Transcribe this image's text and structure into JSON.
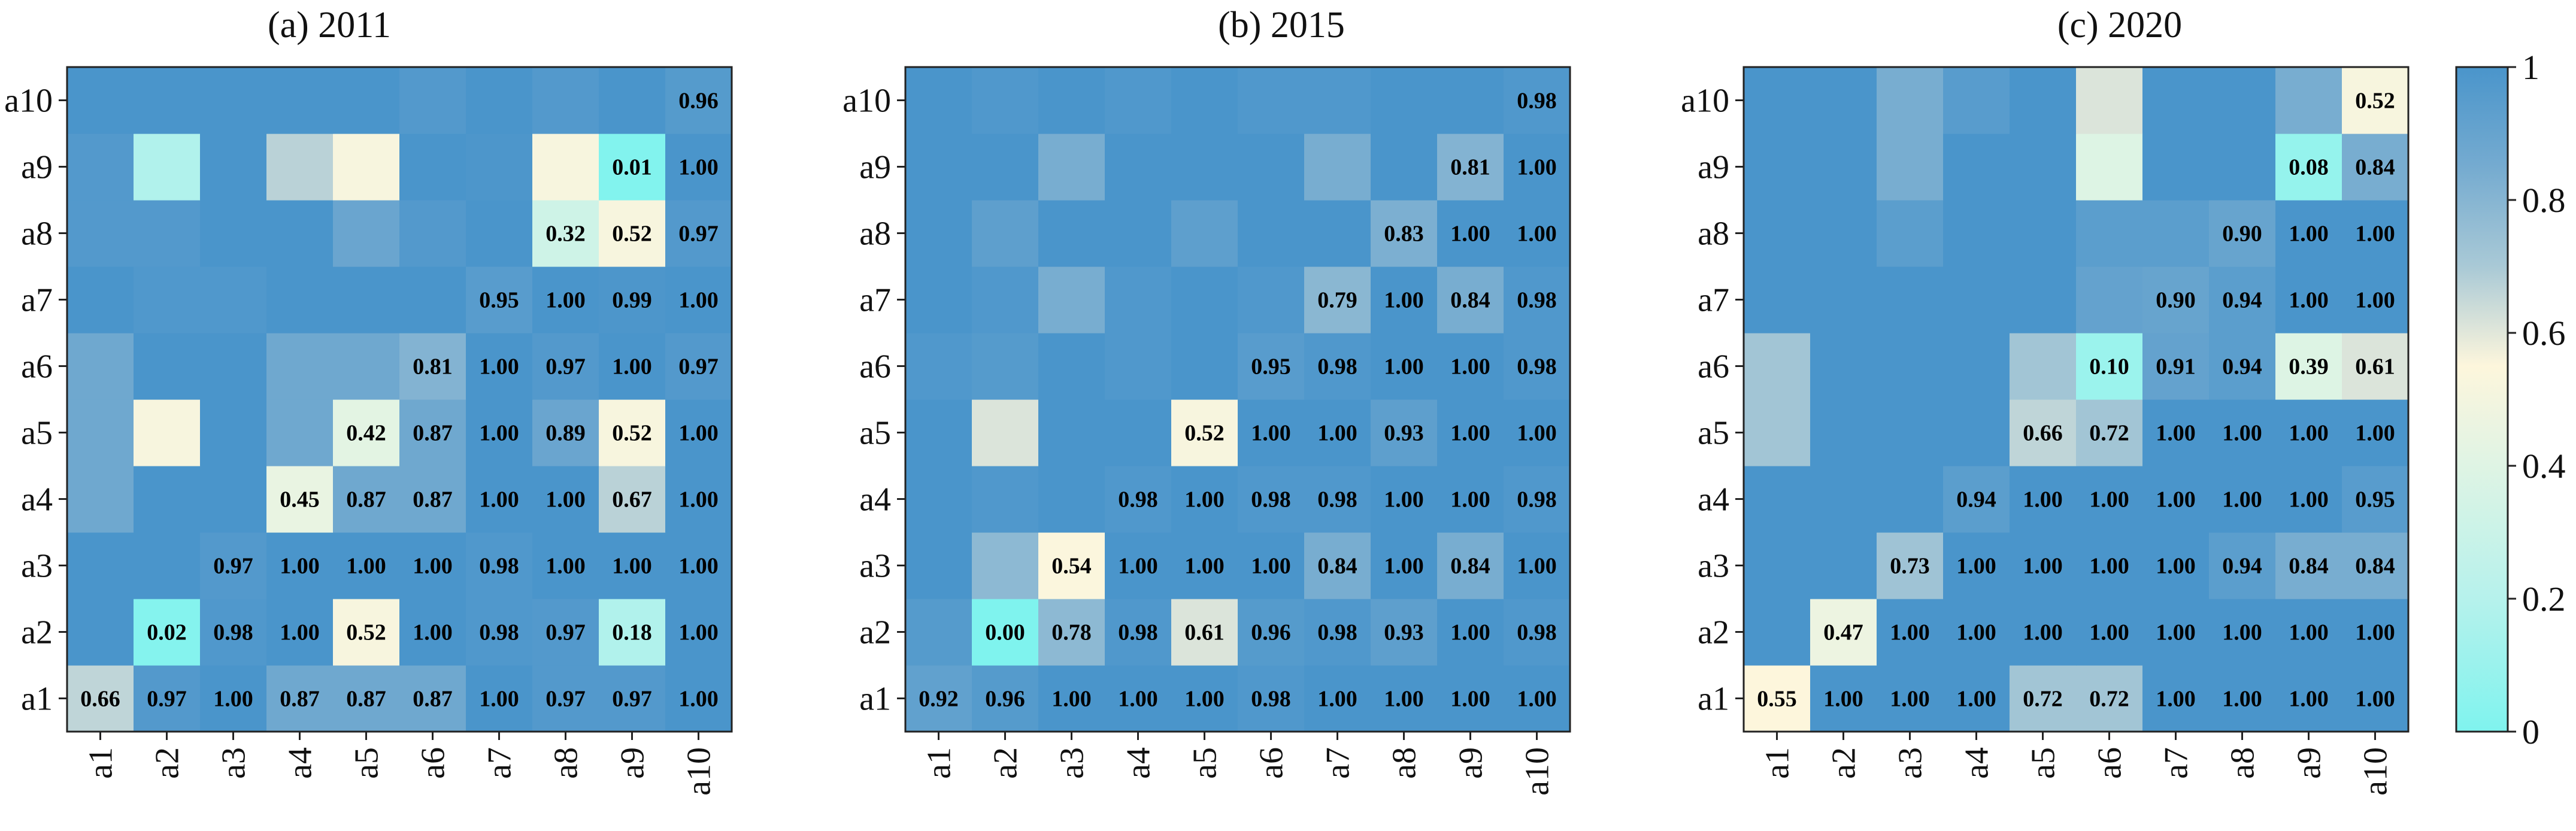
{
  "chart_data": [
    {
      "type": "heatmap",
      "title": "(a) 2011",
      "x_categories": [
        "a1",
        "a2",
        "a3",
        "a4",
        "a5",
        "a6",
        "a7",
        "a8",
        "a9",
        "a10"
      ],
      "y_categories": [
        "a1",
        "a2",
        "a3",
        "a4",
        "a5",
        "a6",
        "a7",
        "a8",
        "a9",
        "a10"
      ],
      "value_range": [
        0,
        1
      ],
      "matrix": [
        [
          0.66,
          0.97,
          1.0,
          0.87,
          0.87,
          0.87,
          1.0,
          0.97,
          0.97,
          1.0
        ],
        [
          1.0,
          0.02,
          0.98,
          1.0,
          0.52,
          1.0,
          0.98,
          0.97,
          0.18,
          1.0
        ],
        [
          1.0,
          1.0,
          0.97,
          1.0,
          1.0,
          1.0,
          0.98,
          1.0,
          1.0,
          1.0
        ],
        [
          0.87,
          1.0,
          1.0,
          0.45,
          0.87,
          0.87,
          1.0,
          1.0,
          0.67,
          1.0
        ],
        [
          0.87,
          0.52,
          1.0,
          0.87,
          0.42,
          0.87,
          1.0,
          0.89,
          0.52,
          1.0
        ],
        [
          0.87,
          1.0,
          1.0,
          0.87,
          0.87,
          0.81,
          1.0,
          0.97,
          1.0,
          0.97
        ],
        [
          1.0,
          0.98,
          0.98,
          1.0,
          1.0,
          1.0,
          0.95,
          1.0,
          0.99,
          1.0
        ],
        [
          0.97,
          0.97,
          1.0,
          1.0,
          0.89,
          0.97,
          1.0,
          0.32,
          0.52,
          0.97
        ],
        [
          0.97,
          0.18,
          1.0,
          0.67,
          0.52,
          1.0,
          0.99,
          0.52,
          0.01,
          1.0
        ],
        [
          1.0,
          1.0,
          1.0,
          1.0,
          1.0,
          0.97,
          1.0,
          0.97,
          1.0,
          0.96
        ]
      ],
      "labels": [
        [
          "0.66",
          "0.97",
          "1.00",
          "0.87",
          "0.87",
          "0.87",
          "1.00",
          "0.97",
          "0.97",
          "1.00"
        ],
        [
          "",
          "0.02",
          "0.98",
          "1.00",
          "0.52",
          "1.00",
          "0.98",
          "0.97",
          "0.18",
          "1.00"
        ],
        [
          "",
          "",
          "0.97",
          "1.00",
          "1.00",
          "1.00",
          "0.98",
          "1.00",
          "1.00",
          "1.00"
        ],
        [
          "",
          "",
          "",
          "0.45",
          "0.87",
          "0.87",
          "1.00",
          "1.00",
          "0.67",
          "1.00"
        ],
        [
          "",
          "",
          "",
          "",
          "0.42",
          "0.87",
          "1.00",
          "0.89",
          "0.52",
          "1.00"
        ],
        [
          "",
          "",
          "",
          "",
          "",
          "0.81",
          "1.00",
          "0.97",
          "1.00",
          "0.97"
        ],
        [
          "",
          "",
          "",
          "",
          "",
          "",
          "0.95",
          "1.00",
          "0.99",
          "1.00"
        ],
        [
          "",
          "",
          "",
          "",
          "",
          "",
          "",
          "0.32",
          "0.52",
          "0.97"
        ],
        [
          "",
          "",
          "",
          "",
          "",
          "",
          "",
          "",
          "0.01",
          "1.00"
        ],
        [
          "",
          "",
          "",
          "",
          "",
          "",
          "",
          "",
          "",
          "0.96"
        ]
      ]
    },
    {
      "type": "heatmap",
      "title": "(b) 2015",
      "x_categories": [
        "a1",
        "a2",
        "a3",
        "a4",
        "a5",
        "a6",
        "a7",
        "a8",
        "a9",
        "a10"
      ],
      "y_categories": [
        "a1",
        "a2",
        "a3",
        "a4",
        "a5",
        "a6",
        "a7",
        "a8",
        "a9",
        "a10"
      ],
      "value_range": [
        0,
        1
      ],
      "matrix": [
        [
          0.92,
          0.96,
          1.0,
          1.0,
          1.0,
          0.98,
          1.0,
          1.0,
          1.0,
          1.0
        ],
        [
          0.96,
          0.0,
          0.78,
          0.98,
          0.61,
          0.96,
          0.98,
          0.93,
          1.0,
          0.98
        ],
        [
          1.0,
          0.78,
          0.54,
          1.0,
          1.0,
          1.0,
          0.84,
          1.0,
          0.84,
          1.0
        ],
        [
          1.0,
          0.98,
          1.0,
          0.98,
          1.0,
          0.98,
          0.98,
          1.0,
          1.0,
          0.98
        ],
        [
          1.0,
          0.61,
          1.0,
          1.0,
          0.52,
          1.0,
          1.0,
          0.93,
          1.0,
          1.0
        ],
        [
          0.98,
          0.96,
          1.0,
          0.98,
          1.0,
          0.95,
          0.98,
          1.0,
          1.0,
          0.98
        ],
        [
          1.0,
          0.98,
          0.84,
          0.98,
          1.0,
          0.98,
          0.79,
          1.0,
          0.84,
          0.98
        ],
        [
          1.0,
          0.93,
          1.0,
          1.0,
          0.93,
          1.0,
          1.0,
          0.83,
          1.0,
          1.0
        ],
        [
          1.0,
          1.0,
          0.84,
          1.0,
          1.0,
          1.0,
          0.84,
          1.0,
          0.81,
          1.0
        ],
        [
          1.0,
          0.98,
          1.0,
          0.98,
          1.0,
          0.98,
          0.98,
          1.0,
          1.0,
          0.98
        ]
      ],
      "labels": [
        [
          "0.92",
          "0.96",
          "1.00",
          "1.00",
          "1.00",
          "0.98",
          "1.00",
          "1.00",
          "1.00",
          "1.00"
        ],
        [
          "",
          "0.00",
          "0.78",
          "0.98",
          "0.61",
          "0.96",
          "0.98",
          "0.93",
          "1.00",
          "0.98"
        ],
        [
          "",
          "",
          "0.54",
          "1.00",
          "1.00",
          "1.00",
          "0.84",
          "1.00",
          "0.84",
          "1.00"
        ],
        [
          "",
          "",
          "",
          "0.98",
          "1.00",
          "0.98",
          "0.98",
          "1.00",
          "1.00",
          "0.98"
        ],
        [
          "",
          "",
          "",
          "",
          "0.52",
          "1.00",
          "1.00",
          "0.93",
          "1.00",
          "1.00"
        ],
        [
          "",
          "",
          "",
          "",
          "",
          "0.95",
          "0.98",
          "1.00",
          "1.00",
          "0.98"
        ],
        [
          "",
          "",
          "",
          "",
          "",
          "",
          "0.79",
          "1.00",
          "0.84",
          "0.98"
        ],
        [
          "",
          "",
          "",
          "",
          "",
          "",
          "",
          "0.83",
          "1.00",
          "1.00"
        ],
        [
          "",
          "",
          "",
          "",
          "",
          "",
          "",
          "",
          "0.81",
          "1.00"
        ],
        [
          "",
          "",
          "",
          "",
          "",
          "",
          "",
          "",
          "",
          "0.98"
        ]
      ]
    },
    {
      "type": "heatmap",
      "title": "(c) 2020",
      "x_categories": [
        "a1",
        "a2",
        "a3",
        "a4",
        "a5",
        "a6",
        "a7",
        "a8",
        "a9",
        "a10"
      ],
      "y_categories": [
        "a1",
        "a2",
        "a3",
        "a4",
        "a5",
        "a6",
        "a7",
        "a8",
        "a9",
        "a10"
      ],
      "value_range": [
        0,
        1
      ],
      "matrix": [
        [
          0.55,
          1.0,
          1.0,
          1.0,
          0.72,
          0.72,
          1.0,
          1.0,
          1.0,
          1.0
        ],
        [
          1.0,
          0.47,
          1.0,
          1.0,
          1.0,
          1.0,
          1.0,
          1.0,
          1.0,
          1.0
        ],
        [
          1.0,
          1.0,
          0.73,
          1.0,
          1.0,
          1.0,
          1.0,
          0.94,
          0.84,
          0.84
        ],
        [
          1.0,
          1.0,
          1.0,
          0.94,
          1.0,
          1.0,
          1.0,
          1.0,
          1.0,
          0.95
        ],
        [
          0.72,
          1.0,
          1.0,
          1.0,
          0.66,
          0.72,
          1.0,
          1.0,
          1.0,
          1.0
        ],
        [
          0.72,
          1.0,
          1.0,
          1.0,
          0.72,
          0.1,
          0.91,
          0.94,
          0.39,
          0.61
        ],
        [
          1.0,
          1.0,
          1.0,
          1.0,
          1.0,
          0.91,
          0.9,
          0.94,
          1.0,
          1.0
        ],
        [
          1.0,
          1.0,
          0.94,
          1.0,
          1.0,
          0.94,
          0.94,
          0.9,
          1.0,
          1.0
        ],
        [
          1.0,
          1.0,
          0.84,
          1.0,
          1.0,
          0.39,
          1.0,
          1.0,
          0.08,
          0.84
        ],
        [
          1.0,
          1.0,
          0.84,
          0.95,
          1.0,
          0.61,
          1.0,
          1.0,
          0.84,
          0.52
        ]
      ],
      "labels": [
        [
          "0.55",
          "1.00",
          "1.00",
          "1.00",
          "0.72",
          "0.72",
          "1.00",
          "1.00",
          "1.00",
          "1.00"
        ],
        [
          "",
          "0.47",
          "1.00",
          "1.00",
          "1.00",
          "1.00",
          "1.00",
          "1.00",
          "1.00",
          "1.00"
        ],
        [
          "",
          "",
          "0.73",
          "1.00",
          "1.00",
          "1.00",
          "1.00",
          "0.94",
          "0.84",
          "0.84"
        ],
        [
          "",
          "",
          "",
          "0.94",
          "1.00",
          "1.00",
          "1.00",
          "1.00",
          "1.00",
          "0.95"
        ],
        [
          "",
          "",
          "",
          "",
          "0.66",
          "0.72",
          "1.00",
          "1.00",
          "1.00",
          "1.00"
        ],
        [
          "",
          "",
          "",
          "",
          "",
          "0.10",
          "0.91",
          "0.94",
          "0.39",
          "0.61"
        ],
        [
          "",
          "",
          "",
          "",
          "",
          "",
          "0.90",
          "0.94",
          "1.00",
          "1.00"
        ],
        [
          "",
          "",
          "",
          "",
          "",
          "",
          "",
          "0.90",
          "1.00",
          "1.00"
        ],
        [
          "",
          "",
          "",
          "",
          "",
          "",
          "",
          "",
          "0.08",
          "0.84"
        ],
        [
          "",
          "",
          "",
          "",
          "",
          "",
          "",
          "",
          "",
          "0.52"
        ]
      ]
    }
  ],
  "colorbar": {
    "ticks": [
      "0",
      "0.2",
      "0.4",
      "0.6",
      "0.8",
      "1"
    ],
    "tick_values": [
      0,
      0.2,
      0.4,
      0.6,
      0.8,
      1
    ],
    "colors": {
      "0.00": "#7FF3EE",
      "0.20": "#B6F2EC",
      "0.45": "#E9F4E2",
      "0.55": "#FDF6DC",
      "0.70": "#A9C9D6",
      "0.85": "#75ABD0",
      "1.00": "#4A95CB"
    }
  }
}
